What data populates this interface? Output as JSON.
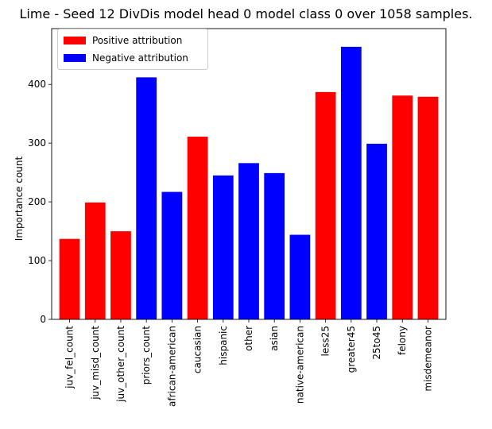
{
  "chart_data": {
    "type": "bar",
    "title": "Lime - Seed 12 DivDis model head 0 model class 0 over 1058 samples.",
    "xlabel": "",
    "ylabel": "Importance count",
    "ylim": [
      0,
      495
    ],
    "yticks": [
      0,
      100,
      200,
      300,
      400
    ],
    "categories": [
      "juv_fel_count",
      "juv_misd_count",
      "juv_other_count",
      "priors_count",
      "african-american",
      "caucasian",
      "hispanic",
      "other",
      "asian",
      "native-american",
      "less25",
      "greater45",
      "25to45",
      "felony",
      "misdemeanor"
    ],
    "values": [
      137,
      199,
      150,
      412,
      217,
      311,
      245,
      266,
      249,
      144,
      387,
      464,
      299,
      381,
      379
    ],
    "attribution": [
      "positive",
      "positive",
      "positive",
      "negative",
      "negative",
      "positive",
      "negative",
      "negative",
      "negative",
      "negative",
      "positive",
      "negative",
      "negative",
      "positive",
      "positive"
    ],
    "colors": {
      "positive": "#ff0000",
      "negative": "#0000ff"
    },
    "legend": {
      "position": "top-left",
      "entries": [
        {
          "label": "Positive attribution",
          "key": "positive"
        },
        {
          "label": "Negative attribution",
          "key": "negative"
        }
      ]
    },
    "grid": false
  }
}
